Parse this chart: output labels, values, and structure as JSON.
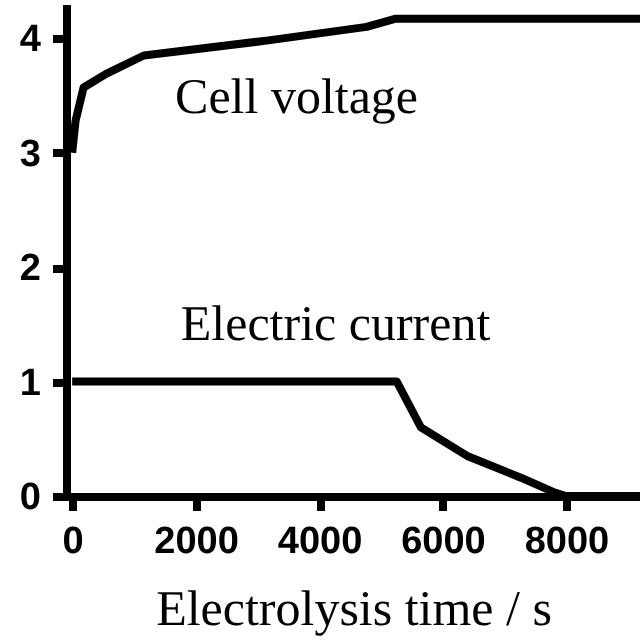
{
  "chart_data": {
    "type": "line",
    "xlabel": "Electrolysis time / s",
    "xlim": [
      -100,
      9200
    ],
    "ylim": [
      0,
      4.3
    ],
    "xticks": [
      0,
      2000,
      4000,
      6000,
      8000
    ],
    "yticks": [
      0,
      1,
      2,
      3,
      4
    ],
    "grid": false,
    "legend": false,
    "marker": "none",
    "line_style": "solid",
    "series": [
      {
        "name": "Cell voltage",
        "color": "#000000",
        "x": [
          0,
          55,
          185,
          550,
          1160,
          3150,
          4770,
          5230,
          9200
        ],
        "values": [
          3.0,
          3.28,
          3.57,
          3.69,
          3.85,
          3.98,
          4.1,
          4.17,
          4.17
        ]
      },
      {
        "name": "Electric current",
        "color": "#000000",
        "x": [
          0,
          5260,
          5650,
          6400,
          7270,
          7820,
          8000,
          9200
        ],
        "values": [
          1.0,
          1.0,
          0.6,
          0.35,
          0.16,
          0.03,
          0,
          0
        ]
      }
    ]
  }
}
